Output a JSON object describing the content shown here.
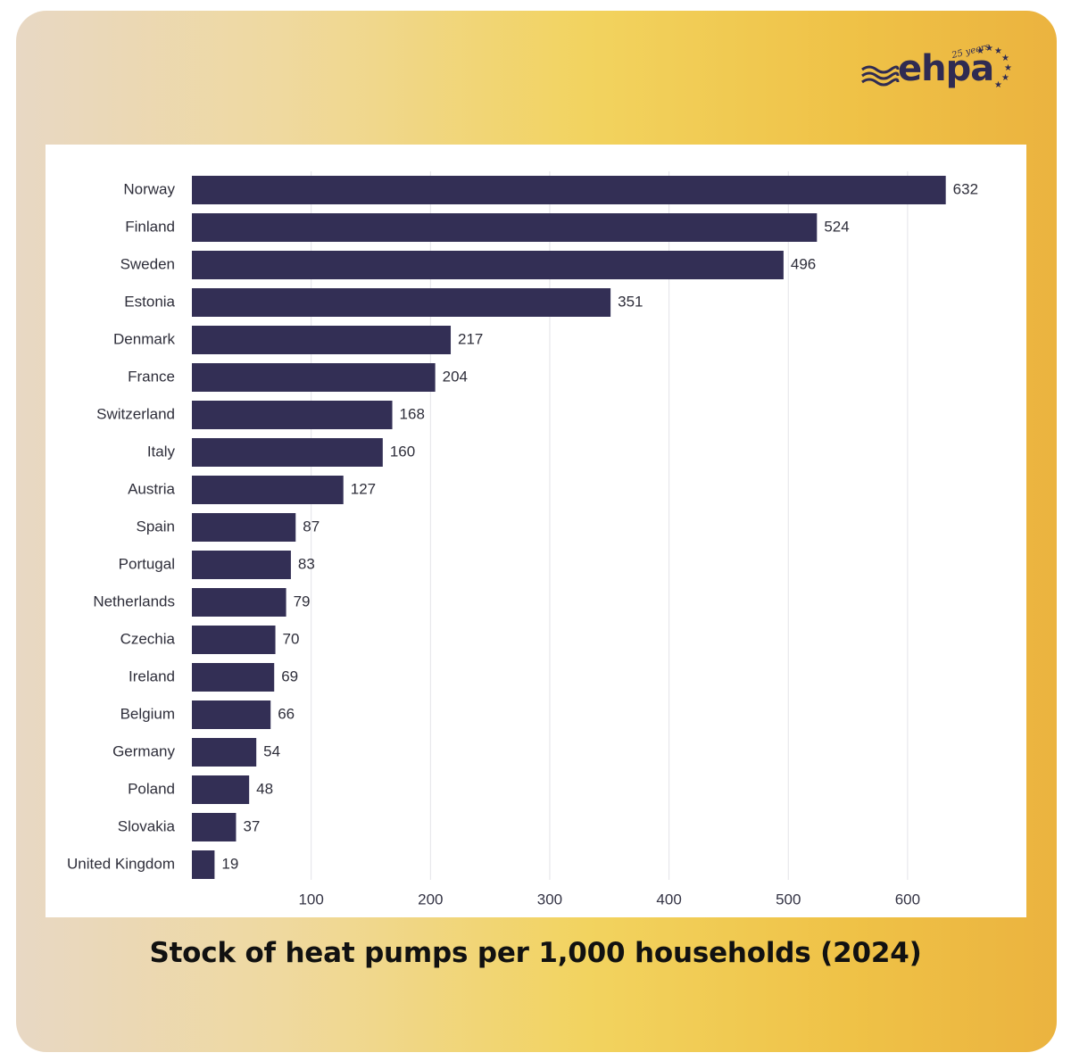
{
  "brand": {
    "name": "ehpa",
    "badge": "25 years",
    "brand_color": "#2f2b52",
    "star_color": "#2f2b52"
  },
  "caption": "Stock of heat pumps per 1,000 households (2024)",
  "chart_data": {
    "type": "bar",
    "orientation": "horizontal",
    "title": "Stock of heat pumps per 1,000 households (2024)",
    "categories": [
      "Norway",
      "Finland",
      "Sweden",
      "Estonia",
      "Denmark",
      "France",
      "Switzerland",
      "Italy",
      "Austria",
      "Spain",
      "Portugal",
      "Netherlands",
      "Czechia",
      "Ireland",
      "Belgium",
      "Germany",
      "Poland",
      "Slovakia",
      "United Kingdom"
    ],
    "values": [
      632,
      524,
      496,
      351,
      217,
      204,
      168,
      160,
      127,
      87,
      83,
      79,
      70,
      69,
      66,
      54,
      48,
      37,
      19
    ],
    "xticks": [
      100,
      200,
      300,
      400,
      500,
      600
    ],
    "xlim": [
      0,
      650
    ],
    "grid": "vertical",
    "bar_color": "#332f55",
    "grid_color": "#e3e3e8",
    "data_labels": true,
    "legend": "none"
  }
}
